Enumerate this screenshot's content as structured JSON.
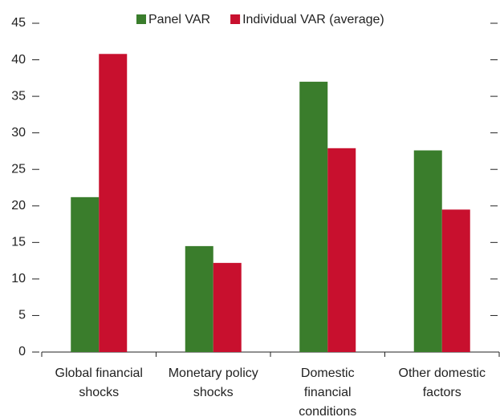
{
  "chart_data": {
    "type": "bar",
    "categories": [
      "Global financial shocks",
      "Monetary policy shocks",
      "Domestic financial conditions",
      "Other domestic factors"
    ],
    "series": [
      {
        "name": "Panel VAR",
        "color": "#3a7d2c",
        "values": [
          21.2,
          14.5,
          37.0,
          27.6
        ]
      },
      {
        "name": "Individual VAR (average)",
        "color": "#c8102e",
        "values": [
          40.8,
          12.2,
          27.9,
          19.5
        ]
      }
    ],
    "ylim": [
      0,
      45
    ],
    "yticks": [
      0,
      5,
      10,
      15,
      20,
      25,
      30,
      35,
      40,
      45
    ],
    "grid": false,
    "legend": "top"
  }
}
